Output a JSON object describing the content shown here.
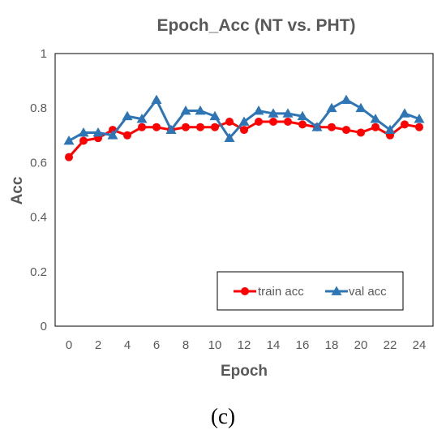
{
  "caption": "(c)",
  "chart_data": {
    "type": "line",
    "title": "Epoch_Acc (NT vs. PHT)",
    "xlabel": "Epoch",
    "ylabel": "Acc",
    "x": [
      0,
      1,
      2,
      3,
      4,
      5,
      6,
      7,
      8,
      9,
      10,
      11,
      12,
      13,
      14,
      15,
      16,
      17,
      18,
      19,
      20,
      21,
      22,
      23,
      24
    ],
    "xlim": [
      0,
      24
    ],
    "ylim": [
      0,
      1
    ],
    "x_ticks": [
      "0",
      "2",
      "4",
      "6",
      "8",
      "10",
      "12",
      "14",
      "16",
      "18",
      "20",
      "22",
      "24"
    ],
    "y_ticks": [
      "0",
      "0.2",
      "0.4",
      "0.6",
      "0.8",
      "1"
    ],
    "grid": false,
    "legend_position": "bottom-right inside plot",
    "series": [
      {
        "name": "train acc",
        "color": "#ff0000",
        "line_color": "#ff0000",
        "marker": "circle",
        "values": [
          0.62,
          0.68,
          0.69,
          0.72,
          0.7,
          0.73,
          0.73,
          0.72,
          0.73,
          0.73,
          0.73,
          0.75,
          0.72,
          0.75,
          0.75,
          0.75,
          0.74,
          0.73,
          0.73,
          0.72,
          0.71,
          0.73,
          0.7,
          0.74,
          0.73
        ]
      },
      {
        "name": "val acc",
        "color": "#2e75b6",
        "line_color": "#2e75b6",
        "marker": "triangle",
        "values": [
          0.68,
          0.71,
          0.71,
          0.7,
          0.77,
          0.76,
          0.83,
          0.72,
          0.79,
          0.79,
          0.77,
          0.69,
          0.75,
          0.79,
          0.78,
          0.78,
          0.77,
          0.73,
          0.8,
          0.83,
          0.8,
          0.76,
          0.72,
          0.78,
          0.76
        ]
      }
    ]
  }
}
